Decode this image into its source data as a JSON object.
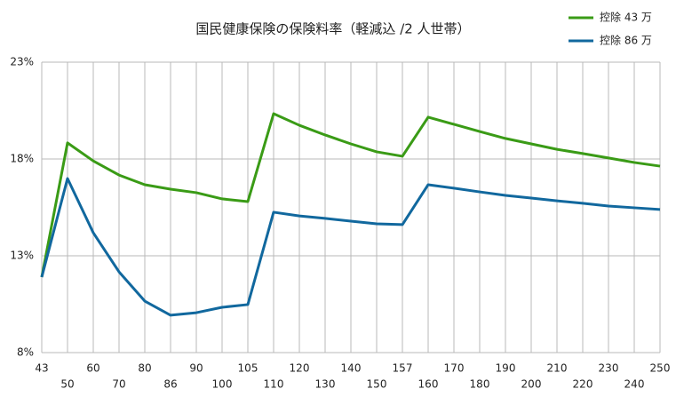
{
  "chart_data": {
    "type": "line",
    "title": "国民健康保険の保険料率（軽減込 /2 人世帯）",
    "categories": [
      "43",
      "50",
      "60",
      "70",
      "80",
      "86",
      "90",
      "100",
      "105",
      "110",
      "120",
      "130",
      "140",
      "150",
      "157",
      "160",
      "170",
      "180",
      "190",
      "200",
      "210",
      "220",
      "230",
      "240",
      "250"
    ],
    "series": [
      {
        "name": "控除 43 万",
        "color": "#3a9b16",
        "values": [
          11.9,
          18.83,
          17.9,
          17.17,
          16.67,
          16.44,
          16.26,
          15.94,
          15.8,
          20.34,
          19.74,
          19.24,
          18.78,
          18.37,
          18.14,
          20.16,
          19.79,
          19.42,
          19.06,
          18.78,
          18.5,
          18.28,
          18.05,
          17.82,
          17.63
        ]
      },
      {
        "name": "控除 86 万",
        "color": "#11689e",
        "values": [
          11.9,
          16.99,
          14.19,
          12.17,
          10.66,
          9.93,
          10.06,
          10.34,
          10.48,
          15.25,
          15.06,
          14.93,
          14.79,
          14.65,
          14.61,
          16.67,
          16.49,
          16.3,
          16.12,
          15.98,
          15.84,
          15.71,
          15.57,
          15.48,
          15.39
        ]
      }
    ],
    "ylim": [
      8,
      23
    ],
    "yticks": [
      {
        "value": 8,
        "label": "8%"
      },
      {
        "value": 13,
        "label": "13%"
      },
      {
        "value": 18,
        "label": "18%"
      },
      {
        "value": 23,
        "label": "23%"
      }
    ],
    "grid": true,
    "legend": "top-right"
  }
}
